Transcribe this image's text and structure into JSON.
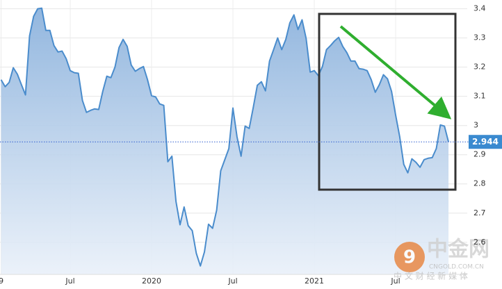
{
  "chart_data": {
    "type": "area",
    "categories": [
      "9",
      null,
      null,
      null,
      null,
      null,
      null,
      null,
      null,
      null,
      null,
      null,
      null,
      null,
      null,
      null,
      null,
      "Jul",
      null,
      null,
      null,
      null,
      null,
      null,
      null,
      null,
      null,
      null,
      null,
      null,
      null,
      null,
      null,
      null,
      null,
      null,
      null,
      "2020",
      null,
      null,
      null,
      null,
      null,
      null,
      null,
      null,
      null,
      null,
      null,
      null,
      null,
      null,
      null,
      null,
      null,
      null,
      null,
      "Jul",
      null,
      null,
      null,
      null,
      null,
      null,
      null,
      null,
      null,
      null,
      null,
      null,
      null,
      null,
      null,
      null,
      null,
      null,
      null,
      "2021",
      null,
      null,
      null,
      null,
      null,
      null,
      null,
      null,
      null,
      null,
      null,
      null,
      null,
      null,
      null,
      null,
      null,
      null,
      null,
      "Jul",
      null,
      null,
      null,
      null,
      null,
      null,
      null,
      null,
      null,
      null,
      null,
      null,
      null
    ],
    "values": [
      3.157,
      3.133,
      3.148,
      3.198,
      3.176,
      3.14,
      3.105,
      3.307,
      3.374,
      3.4,
      3.402,
      3.326,
      3.326,
      3.274,
      3.252,
      3.255,
      3.229,
      3.188,
      3.181,
      3.179,
      3.086,
      3.045,
      3.052,
      3.057,
      3.055,
      3.117,
      3.169,
      3.164,
      3.2,
      3.267,
      3.295,
      3.271,
      3.207,
      3.186,
      3.195,
      3.202,
      3.157,
      3.102,
      3.098,
      3.074,
      3.069,
      2.876,
      2.895,
      2.74,
      2.66,
      2.721,
      2.657,
      2.64,
      2.562,
      2.519,
      2.567,
      2.662,
      2.648,
      2.71,
      2.845,
      2.883,
      2.921,
      3.06,
      2.962,
      2.895,
      2.998,
      2.99,
      3.062,
      3.138,
      3.15,
      3.119,
      3.221,
      3.26,
      3.3,
      3.26,
      3.295,
      3.352,
      3.379,
      3.329,
      3.362,
      3.298,
      3.183,
      3.188,
      3.171,
      3.202,
      3.26,
      3.274,
      3.29,
      3.302,
      3.271,
      3.25,
      3.221,
      3.221,
      3.195,
      3.193,
      3.188,
      3.157,
      3.114,
      3.14,
      3.174,
      3.16,
      3.117,
      3.036,
      2.962,
      2.867,
      2.838,
      2.886,
      2.874,
      2.857,
      2.883,
      2.888,
      2.89,
      2.921,
      3.002,
      2.998,
      2.944
    ],
    "color": "#4a8ccc",
    "ylim": [
      2.49,
      3.43
    ],
    "yticks": [
      2.6,
      2.7,
      2.8,
      2.9,
      3,
      3.1,
      3.2,
      3.3,
      3.4
    ],
    "grid": true,
    "watermark": {
      "brand": "中金网",
      "site": "CNGOLD.COM.CN",
      "slogan": "中 文 财 经 新 媒 体"
    }
  }
}
